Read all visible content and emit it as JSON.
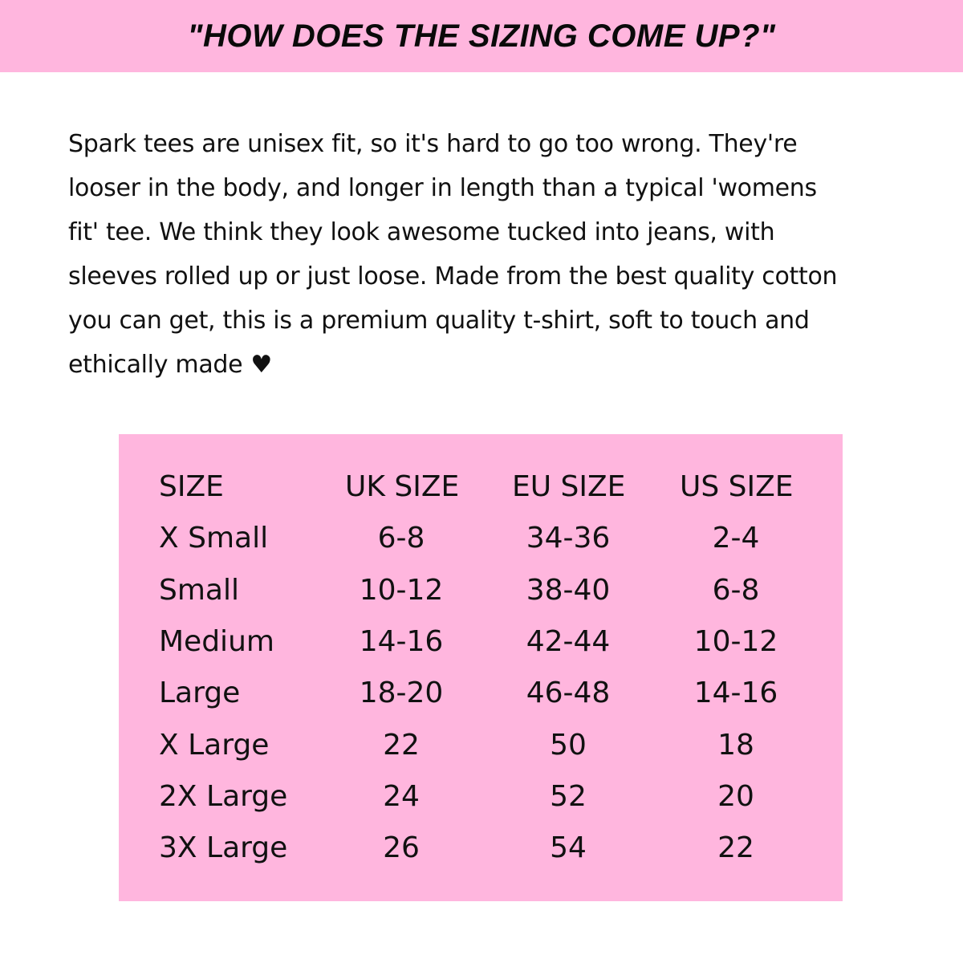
{
  "header": {
    "title": "\"HOW DOES THE SIZING COME UP?\""
  },
  "description": {
    "lines": [
      "Spark tees are unisex fit, so it's hard to go too wrong. They're",
      "looser in the body, and longer in length than a typical 'womens",
      "fit' tee. We think they look awesome tucked into jeans, with",
      "sleeves rolled up or just loose. Made from the best quality cotton",
      "you can get, this is a premium quality t-shirt, soft to touch and",
      "ethically made"
    ],
    "heart_icon": "♥"
  },
  "size_table": {
    "headers": [
      "SIZE",
      "UK SIZE",
      "EU SIZE",
      "US SIZE"
    ],
    "rows": [
      [
        "X Small",
        "6-8",
        "34-36",
        "2-4"
      ],
      [
        "Small",
        "10-12",
        "38-40",
        "6-8"
      ],
      [
        "Medium",
        "14-16",
        "42-44",
        "10-12"
      ],
      [
        "Large",
        "18-20",
        "46-48",
        "14-16"
      ],
      [
        "X Large",
        "22",
        "50",
        "18"
      ],
      [
        "2X Large",
        "24",
        "52",
        "20"
      ],
      [
        "3X Large",
        "26",
        "54",
        "22"
      ]
    ]
  },
  "colors": {
    "accent_pink": "#ffb6de",
    "text": "#111111"
  }
}
